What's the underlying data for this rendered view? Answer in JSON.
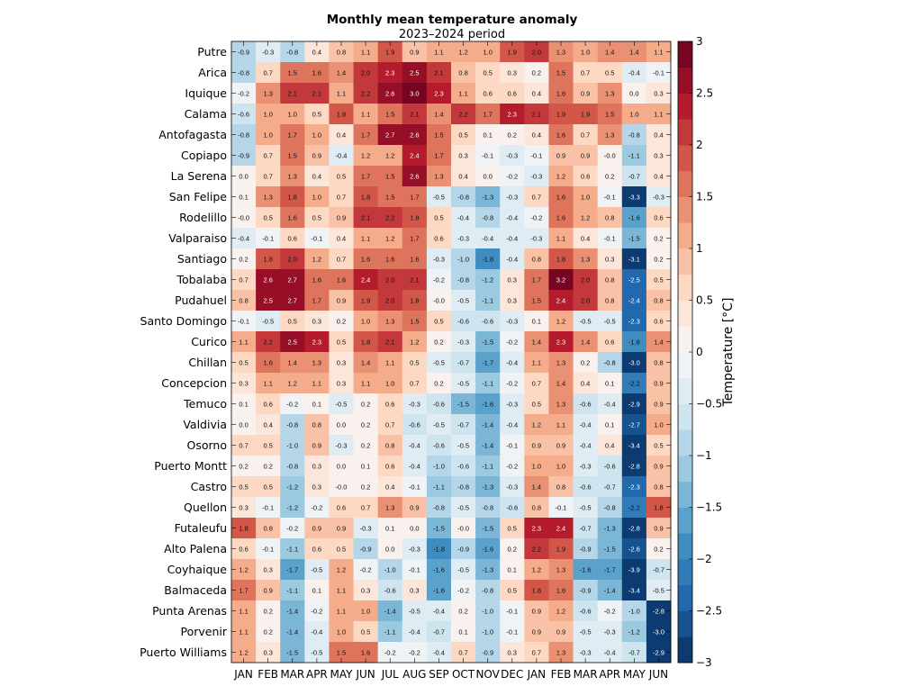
{
  "chart_data": {
    "type": "heatmap",
    "title": "Monthly mean temperature anomaly",
    "subtitle": "2023–2024 period",
    "colorbar_label": "Temperature [°C]",
    "colorbar_range": [
      -3,
      3
    ],
    "colorbar_ticks": [
      "3",
      "2.5",
      "2",
      "1.5",
      "1",
      "0.5",
      "0",
      "−0.5",
      "−1",
      "−1.5",
      "−2",
      "−2.5",
      "−3"
    ],
    "colorbar_tick_values": [
      3,
      2.5,
      2,
      1.5,
      1,
      0.5,
      0,
      -0.5,
      -1,
      -1.5,
      -2,
      -2.5,
      -3
    ],
    "months": [
      "JAN",
      "FEB",
      "MAR",
      "APR",
      "MAY",
      "JUN",
      "JUL",
      "AUG",
      "SEP",
      "OCT",
      "NOV",
      "DEC",
      "JAN",
      "FEB",
      "MAR",
      "APR",
      "MAY",
      "JUN"
    ],
    "stations": [
      "Putre",
      "Arica",
      "Iquique",
      "Calama",
      "Antofagasta",
      "Copiapo",
      "La Serena",
      "San Felipe",
      "Rodelillo",
      "Valparaiso",
      "Santiago",
      "Tobalaba",
      "Pudahuel",
      "Santo Domingo",
      "Curico",
      "Chillan",
      "Concepcion",
      "Temuco",
      "Valdivia",
      "Osorno",
      "Puerto Montt",
      "Castro",
      "Quellon",
      "Futaleufu",
      "Alto Palena",
      "Coyhaique",
      "Balmaceda",
      "Punta Arenas",
      "Porvenir",
      "Puerto Williams"
    ],
    "values": [
      [
        "-0.9",
        "-0.3",
        "-0.8",
        "0.4",
        "0.8",
        "1.1",
        "1.9",
        "0.9",
        "1.1",
        "1.2",
        "1.0",
        "1.9",
        "2.0",
        "1.3",
        "1.0",
        "1.4",
        "1.4",
        "1.1"
      ],
      [
        "-0.8",
        "0.7",
        "1.5",
        "1.6",
        "1.4",
        "2.0",
        "2.3",
        "2.5",
        "2.1",
        "0.8",
        "0.5",
        "0.3",
        "0.2",
        "1.5",
        "0.7",
        "0.5",
        "-0.4",
        "-0.1"
      ],
      [
        "-0.2",
        "1.3",
        "2.1",
        "2.1",
        "1.1",
        "2.2",
        "2.6",
        "3.0",
        "2.3",
        "1.1",
        "0.6",
        "0.6",
        "0.4",
        "1.6",
        "0.9",
        "1.3",
        "0.0",
        "0.3"
      ],
      [
        "-0.6",
        "1.0",
        "1.0",
        "0.5",
        "1.8",
        "1.1",
        "1.5",
        "2.1",
        "1.4",
        "2.2",
        "1.7",
        "2.3",
        "2.1",
        "1.9",
        "1.9",
        "1.5",
        "1.0",
        "1.1"
      ],
      [
        "-0.8",
        "1.0",
        "1.7",
        "1.0",
        "0.4",
        "1.7",
        "2.7",
        "2.6",
        "1.5",
        "0.5",
        "0.1",
        "0.2",
        "0.4",
        "1.6",
        "0.7",
        "1.3",
        "-0.8",
        "0.4"
      ],
      [
        "-0.9",
        "0.7",
        "1.5",
        "0.9",
        "-0.4",
        "1.2",
        "1.2",
        "2.4",
        "1.7",
        "0.3",
        "-0.1",
        "-0.3",
        "-0.1",
        "0.9",
        "0.9",
        "-0.0",
        "-1.1",
        "0.3"
      ],
      [
        "0.0",
        "0.7",
        "1.3",
        "0.4",
        "0.5",
        "1.7",
        "1.5",
        "2.6",
        "1.3",
        "0.4",
        "0.0",
        "-0.2",
        "-0.3",
        "1.2",
        "0.6",
        "0.2",
        "-0.7",
        "0.4"
      ],
      [
        "0.1",
        "1.3",
        "1.8",
        "1.0",
        "0.7",
        "1.8",
        "1.5",
        "1.7",
        "-0.5",
        "-0.8",
        "-1.3",
        "-0.3",
        "0.7",
        "1.6",
        "1.0",
        "-0.1",
        "-3.3",
        "-0.3"
      ],
      [
        "-0.0",
        "0.5",
        "1.6",
        "0.5",
        "0.9",
        "2.1",
        "2.2",
        "1.8",
        "0.5",
        "-0.4",
        "-0.8",
        "-0.4",
        "-0.2",
        "1.6",
        "1.2",
        "0.8",
        "-1.6",
        "0.6"
      ],
      [
        "-0.4",
        "-0.1",
        "0.6",
        "-0.1",
        "0.4",
        "1.1",
        "1.2",
        "1.7",
        "0.6",
        "-0.3",
        "-0.4",
        "-0.4",
        "-0.3",
        "1.1",
        "0.4",
        "-0.1",
        "-1.5",
        "0.2"
      ],
      [
        "0.2",
        "1.8",
        "2.0",
        "1.2",
        "0.7",
        "1.6",
        "1.6",
        "1.6",
        "-0.3",
        "-1.0",
        "-1.8",
        "-0.4",
        "0.8",
        "1.8",
        "1.3",
        "0.3",
        "-3.1",
        "0.2"
      ],
      [
        "0.7",
        "2.6",
        "2.7",
        "1.6",
        "1.6",
        "2.4",
        "2.0",
        "2.1",
        "-0.2",
        "-0.8",
        "-1.2",
        "0.3",
        "1.7",
        "3.2",
        "2.0",
        "0.8",
        "-2.5",
        "0.5"
      ],
      [
        "0.8",
        "2.5",
        "2.7",
        "1.7",
        "0.9",
        "1.9",
        "2.0",
        "1.8",
        "-0.0",
        "-0.5",
        "-1.1",
        "0.3",
        "1.5",
        "2.4",
        "2.0",
        "0.8",
        "-2.4",
        "0.8"
      ],
      [
        "-0.1",
        "-0.5",
        "0.5",
        "0.3",
        "0.2",
        "1.0",
        "1.3",
        "1.5",
        "0.5",
        "-0.6",
        "-0.6",
        "-0.3",
        "0.1",
        "1.2",
        "-0.5",
        "-0.5",
        "-2.3",
        "0.6"
      ],
      [
        "1.1",
        "2.2",
        "2.5",
        "2.3",
        "0.5",
        "1.8",
        "2.1",
        "1.2",
        "0.2",
        "-0.3",
        "-1.5",
        "-0.2",
        "1.4",
        "2.3",
        "1.4",
        "0.6",
        "-1.8",
        "1.4"
      ],
      [
        "0.5",
        "1.6",
        "1.4",
        "1.3",
        "0.3",
        "1.4",
        "1.1",
        "0.5",
        "-0.5",
        "-0.7",
        "-1.7",
        "-0.4",
        "1.1",
        "1.3",
        "0.2",
        "-0.8",
        "-3.0",
        "0.8"
      ],
      [
        "0.3",
        "1.1",
        "1.2",
        "1.1",
        "0.3",
        "1.1",
        "1.0",
        "0.7",
        "0.2",
        "-0.5",
        "-1.1",
        "-0.2",
        "0.7",
        "1.4",
        "0.4",
        "0.1",
        "-2.2",
        "0.9"
      ],
      [
        "0.1",
        "0.6",
        "-0.2",
        "0.1",
        "-0.5",
        "0.2",
        "0.6",
        "-0.3",
        "-0.6",
        "-1.5",
        "-1.6",
        "-0.3",
        "0.5",
        "1.3",
        "-0.6",
        "-0.4",
        "-2.9",
        "0.9"
      ],
      [
        "0.0",
        "0.4",
        "-0.8",
        "0.8",
        "0.0",
        "0.2",
        "0.7",
        "-0.6",
        "-0.5",
        "-0.7",
        "-1.4",
        "-0.4",
        "1.2",
        "1.1",
        "-0.4",
        "0.1",
        "-2.7",
        "1.0"
      ],
      [
        "0.7",
        "0.5",
        "-1.0",
        "0.9",
        "-0.3",
        "0.2",
        "0.8",
        "-0.4",
        "-0.6",
        "-0.5",
        "-1.4",
        "-0.1",
        "0.9",
        "0.9",
        "-0.4",
        "0.4",
        "-3.4",
        "0.5"
      ],
      [
        "0.2",
        "0.2",
        "-0.8",
        "0.3",
        "0.0",
        "0.1",
        "0.6",
        "-0.4",
        "-1.0",
        "-0.6",
        "-1.1",
        "-0.2",
        "1.0",
        "1.0",
        "-0.3",
        "-0.6",
        "-2.8",
        "0.9"
      ],
      [
        "0.5",
        "0.5",
        "-1.2",
        "0.3",
        "-0.0",
        "0.2",
        "0.4",
        "-0.1",
        "-1.1",
        "-0.8",
        "-1.3",
        "-0.3",
        "1.4",
        "0.8",
        "-0.6",
        "-0.7",
        "-2.3",
        "0.8"
      ],
      [
        "0.3",
        "-0.1",
        "-1.2",
        "-0.2",
        "0.6",
        "0.7",
        "1.3",
        "0.9",
        "-0.8",
        "-0.5",
        "-0.8",
        "-0.6",
        "0.8",
        "-0.1",
        "-0.5",
        "-0.8",
        "-2.2",
        "1.8"
      ],
      [
        "1.8",
        "0.8",
        "-0.2",
        "0.9",
        "0.9",
        "-0.3",
        "0.1",
        "0.0",
        "-1.5",
        "-0.0",
        "-1.5",
        "0.5",
        "2.3",
        "2.4",
        "-0.7",
        "-1.3",
        "-2.8",
        "0.9"
      ],
      [
        "0.6",
        "-0.1",
        "-1.1",
        "0.6",
        "0.5",
        "-0.9",
        "0.0",
        "-0.3",
        "-1.8",
        "-0.9",
        "-1.6",
        "0.2",
        "2.2",
        "1.9",
        "-0.9",
        "-1.5",
        "-2.6",
        "0.2"
      ],
      [
        "1.2",
        "0.3",
        "-1.7",
        "-0.5",
        "1.2",
        "-0.2",
        "-1.0",
        "-0.1",
        "-1.6",
        "-0.5",
        "-1.3",
        "0.1",
        "1.2",
        "1.3",
        "-1.6",
        "-1.7",
        "-3.9",
        "-0.7"
      ],
      [
        "1.7",
        "0.9",
        "-1.1",
        "0.1",
        "1.1",
        "0.3",
        "-0.6",
        "0.3",
        "-1.6",
        "-0.2",
        "-0.8",
        "0.5",
        "1.8",
        "1.6",
        "-0.9",
        "-1.4",
        "-3.4",
        "-0.5"
      ],
      [
        "1.1",
        "0.2",
        "-1.4",
        "-0.2",
        "1.1",
        "1.0",
        "-1.4",
        "-0.5",
        "-0.4",
        "0.2",
        "-1.0",
        "-0.1",
        "0.9",
        "1.2",
        "-0.6",
        "-0.2",
        "-1.0",
        "-2.8"
      ],
      [
        "1.1",
        "0.2",
        "-1.4",
        "-0.4",
        "1.0",
        "0.5",
        "-1.1",
        "-0.4",
        "-0.7",
        "0.1",
        "-1.0",
        "-0.1",
        "0.9",
        "0.9",
        "-0.5",
        "-0.3",
        "-1.2",
        "-3.0"
      ],
      [
        "1.2",
        "0.3",
        "-1.5",
        "-0.5",
        "1.5",
        "1.6",
        "-0.2",
        "-0.2",
        "-0.4",
        "0.7",
        "-0.9",
        "0.3",
        "0.7",
        "1.3",
        "-0.3",
        "-0.4",
        "-0.7",
        "-2.9"
      ]
    ]
  }
}
